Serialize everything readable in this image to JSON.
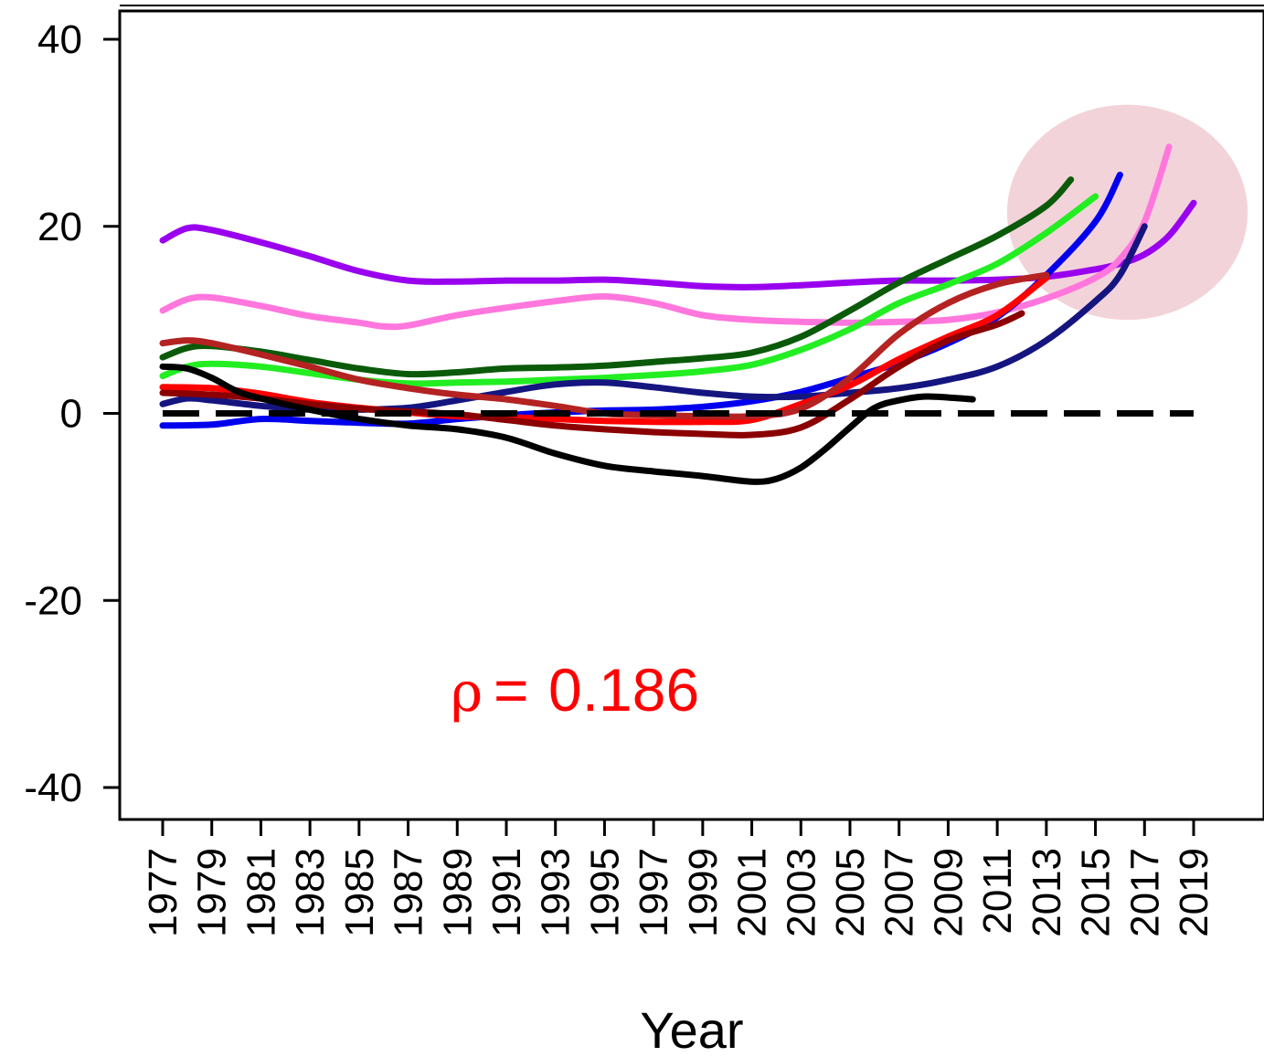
{
  "chart_data": {
    "type": "line",
    "title": "",
    "xlabel": "Year",
    "ylabel": "",
    "xlim": [
      1976.2,
      2020.5
    ],
    "ylim": [
      -43.5,
      43.5
    ],
    "y_ticks": [
      "40",
      "20",
      "0",
      "-20",
      "-40"
    ],
    "y_tick_values": [
      40,
      20,
      0,
      -20,
      -40
    ],
    "x_ticks": [
      "1977",
      "1979",
      "1981",
      "1983",
      "1985",
      "1987",
      "1989",
      "1991",
      "1993",
      "1995",
      "1997",
      "1999",
      "2001",
      "2003",
      "2005",
      "2007",
      "2009",
      "2011",
      "2013",
      "2015",
      "2017",
      "2019"
    ],
    "x_tick_values": [
      1977,
      1979,
      1981,
      1983,
      1985,
      1987,
      1989,
      1991,
      1993,
      1995,
      1997,
      1999,
      2001,
      2003,
      2005,
      2007,
      2009,
      2011,
      2013,
      2015,
      2017,
      2019
    ],
    "annotation": {
      "symbol": "ρ",
      "equals": "=",
      "value": "0.186",
      "color": "#ff0000"
    },
    "reference_line": {
      "y": 0,
      "style": "dashed",
      "color": "#000000"
    },
    "highlight": {
      "cx": 2016.3,
      "cy": 21.5,
      "rx": 4.9,
      "ry": 11.5,
      "color": "#f3d3da"
    },
    "grid": false,
    "series": [
      {
        "color": "#9900ee",
        "points": [
          [
            1977,
            18.5
          ],
          [
            1978,
            19.8
          ],
          [
            1979,
            19.6
          ],
          [
            1981,
            18.3
          ],
          [
            1983,
            16.8
          ],
          [
            1985,
            15.2
          ],
          [
            1987,
            14.2
          ],
          [
            1989,
            14.1
          ],
          [
            1991,
            14.2
          ],
          [
            1993,
            14.2
          ],
          [
            1995,
            14.3
          ],
          [
            1997,
            14.0
          ],
          [
            1999,
            13.6
          ],
          [
            2001,
            13.5
          ],
          [
            2003,
            13.7
          ],
          [
            2005,
            14.0
          ],
          [
            2007,
            14.2
          ],
          [
            2009,
            14.2
          ],
          [
            2011,
            14.3
          ],
          [
            2013,
            14.6
          ],
          [
            2015,
            15.4
          ],
          [
            2016,
            16.0
          ],
          [
            2017,
            17.0
          ],
          [
            2018,
            19.0
          ],
          [
            2019,
            22.5
          ]
        ]
      },
      {
        "color": "#ff77dd",
        "points": [
          [
            1977,
            11.0
          ],
          [
            1978,
            12.2
          ],
          [
            1979,
            12.4
          ],
          [
            1981,
            11.5
          ],
          [
            1983,
            10.4
          ],
          [
            1985,
            9.7
          ],
          [
            1986,
            9.3
          ],
          [
            1987,
            9.4
          ],
          [
            1989,
            10.5
          ],
          [
            1991,
            11.3
          ],
          [
            1993,
            12.0
          ],
          [
            1995,
            12.5
          ],
          [
            1997,
            11.8
          ],
          [
            1999,
            10.5
          ],
          [
            2001,
            10.0
          ],
          [
            2003,
            9.8
          ],
          [
            2005,
            9.7
          ],
          [
            2007,
            9.8
          ],
          [
            2009,
            10.0
          ],
          [
            2011,
            10.8
          ],
          [
            2013,
            12.3
          ],
          [
            2015,
            14.5
          ],
          [
            2016,
            16.5
          ],
          [
            2017,
            20.5
          ],
          [
            2018,
            28.5
          ]
        ]
      },
      {
        "color": "#0a5a0a",
        "points": [
          [
            1977,
            6.0
          ],
          [
            1978,
            7.0
          ],
          [
            1979,
            7.2
          ],
          [
            1981,
            6.6
          ],
          [
            1983,
            5.7
          ],
          [
            1985,
            4.8
          ],
          [
            1987,
            4.2
          ],
          [
            1989,
            4.4
          ],
          [
            1991,
            4.8
          ],
          [
            1993,
            4.9
          ],
          [
            1995,
            5.1
          ],
          [
            1997,
            5.5
          ],
          [
            1999,
            5.9
          ],
          [
            2001,
            6.5
          ],
          [
            2003,
            8.2
          ],
          [
            2005,
            11.0
          ],
          [
            2007,
            14.0
          ],
          [
            2009,
            16.5
          ],
          [
            2011,
            19.0
          ],
          [
            2013,
            22.2
          ],
          [
            2014,
            25.0
          ]
        ]
      },
      {
        "color": "#22ee22",
        "points": [
          [
            1977,
            4.0
          ],
          [
            1978,
            5.0
          ],
          [
            1979,
            5.3
          ],
          [
            1981,
            5.0
          ],
          [
            1983,
            4.3
          ],
          [
            1985,
            3.6
          ],
          [
            1987,
            3.2
          ],
          [
            1989,
            3.3
          ],
          [
            1991,
            3.4
          ],
          [
            1993,
            3.6
          ],
          [
            1995,
            3.8
          ],
          [
            1997,
            4.1
          ],
          [
            1999,
            4.5
          ],
          [
            2001,
            5.2
          ],
          [
            2003,
            6.8
          ],
          [
            2005,
            9.0
          ],
          [
            2007,
            11.8
          ],
          [
            2009,
            13.8
          ],
          [
            2011,
            16.0
          ],
          [
            2013,
            19.3
          ],
          [
            2015,
            23.2
          ]
        ]
      },
      {
        "color": "#0000ee",
        "points": [
          [
            1977,
            -1.3
          ],
          [
            1979,
            -1.2
          ],
          [
            1981,
            -0.6
          ],
          [
            1983,
            -0.8
          ],
          [
            1985,
            -1.0
          ],
          [
            1987,
            -1.1
          ],
          [
            1989,
            -0.6
          ],
          [
            1991,
            -0.2
          ],
          [
            1993,
            0.1
          ],
          [
            1995,
            0.3
          ],
          [
            1997,
            0.4
          ],
          [
            1999,
            0.7
          ],
          [
            2001,
            1.3
          ],
          [
            2003,
            2.3
          ],
          [
            2005,
            3.8
          ],
          [
            2007,
            5.4
          ],
          [
            2009,
            7.5
          ],
          [
            2011,
            10.3
          ],
          [
            2013,
            14.8
          ],
          [
            2015,
            20.5
          ],
          [
            2016,
            25.5
          ]
        ]
      },
      {
        "color": "#151580",
        "points": [
          [
            1977,
            1.0
          ],
          [
            1978,
            1.6
          ],
          [
            1979,
            1.4
          ],
          [
            1981,
            0.8
          ],
          [
            1983,
            0.4
          ],
          [
            1985,
            0.4
          ],
          [
            1987,
            0.6
          ],
          [
            1989,
            1.4
          ],
          [
            1991,
            2.3
          ],
          [
            1993,
            3.1
          ],
          [
            1995,
            3.3
          ],
          [
            1997,
            2.8
          ],
          [
            1999,
            2.2
          ],
          [
            2001,
            1.8
          ],
          [
            2003,
            1.8
          ],
          [
            2005,
            2.2
          ],
          [
            2007,
            2.7
          ],
          [
            2009,
            3.6
          ],
          [
            2011,
            5.0
          ],
          [
            2013,
            7.8
          ],
          [
            2015,
            12.0
          ],
          [
            2016,
            14.8
          ],
          [
            2017,
            20.0
          ]
        ]
      },
      {
        "color": "#ff0000",
        "points": [
          [
            1977,
            2.8
          ],
          [
            1979,
            2.7
          ],
          [
            1981,
            2.1
          ],
          [
            1983,
            1.2
          ],
          [
            1985,
            0.6
          ],
          [
            1987,
            0.1
          ],
          [
            1989,
            -0.3
          ],
          [
            1991,
            -0.4
          ],
          [
            1993,
            -0.6
          ],
          [
            1995,
            -0.8
          ],
          [
            1997,
            -0.9
          ],
          [
            1999,
            -0.9
          ],
          [
            2001,
            -0.7
          ],
          [
            2003,
            1.0
          ],
          [
            2005,
            3.0
          ],
          [
            2007,
            5.8
          ],
          [
            2009,
            8.2
          ],
          [
            2011,
            10.5
          ],
          [
            2013,
            14.5
          ]
        ]
      },
      {
        "color": "#b42222",
        "points": [
          [
            1977,
            7.5
          ],
          [
            1978,
            7.8
          ],
          [
            1979,
            7.5
          ],
          [
            1981,
            6.3
          ],
          [
            1983,
            5.0
          ],
          [
            1985,
            3.6
          ],
          [
            1987,
            2.7
          ],
          [
            1989,
            2.0
          ],
          [
            1991,
            1.5
          ],
          [
            1993,
            0.8
          ],
          [
            1995,
            0.0
          ],
          [
            1997,
            -0.2
          ],
          [
            1999,
            -0.3
          ],
          [
            2001,
            -0.3
          ],
          [
            2003,
            0.5
          ],
          [
            2005,
            3.8
          ],
          [
            2007,
            8.5
          ],
          [
            2009,
            11.8
          ],
          [
            2011,
            13.8
          ],
          [
            2013,
            14.8
          ]
        ]
      },
      {
        "color": "#8b0000",
        "points": [
          [
            1977,
            2.2
          ],
          [
            1979,
            2.0
          ],
          [
            1981,
            1.6
          ],
          [
            1983,
            1.0
          ],
          [
            1985,
            0.5
          ],
          [
            1987,
            0.2
          ],
          [
            1989,
            -0.1
          ],
          [
            1991,
            -0.7
          ],
          [
            1993,
            -1.3
          ],
          [
            1995,
            -1.7
          ],
          [
            1997,
            -2.0
          ],
          [
            1999,
            -2.2
          ],
          [
            2001,
            -2.3
          ],
          [
            2003,
            -1.5
          ],
          [
            2005,
            1.5
          ],
          [
            2007,
            5.0
          ],
          [
            2009,
            7.8
          ],
          [
            2011,
            9.5
          ],
          [
            2012,
            10.7
          ]
        ]
      },
      {
        "color": "#000000",
        "points": [
          [
            1977,
            5.0
          ],
          [
            1978,
            4.8
          ],
          [
            1979,
            3.8
          ],
          [
            1980,
            2.4
          ],
          [
            1981,
            1.6
          ],
          [
            1983,
            0.4
          ],
          [
            1985,
            -0.6
          ],
          [
            1987,
            -1.3
          ],
          [
            1989,
            -1.7
          ],
          [
            1991,
            -2.6
          ],
          [
            1993,
            -4.3
          ],
          [
            1995,
            -5.6
          ],
          [
            1997,
            -6.2
          ],
          [
            1999,
            -6.7
          ],
          [
            2001,
            -7.3
          ],
          [
            2002,
            -7.0
          ],
          [
            2003,
            -5.8
          ],
          [
            2004,
            -3.8
          ],
          [
            2005,
            -1.5
          ],
          [
            2006,
            0.6
          ],
          [
            2007,
            1.4
          ],
          [
            2008,
            1.8
          ],
          [
            2009,
            1.7
          ],
          [
            2010,
            1.5
          ]
        ]
      }
    ]
  }
}
